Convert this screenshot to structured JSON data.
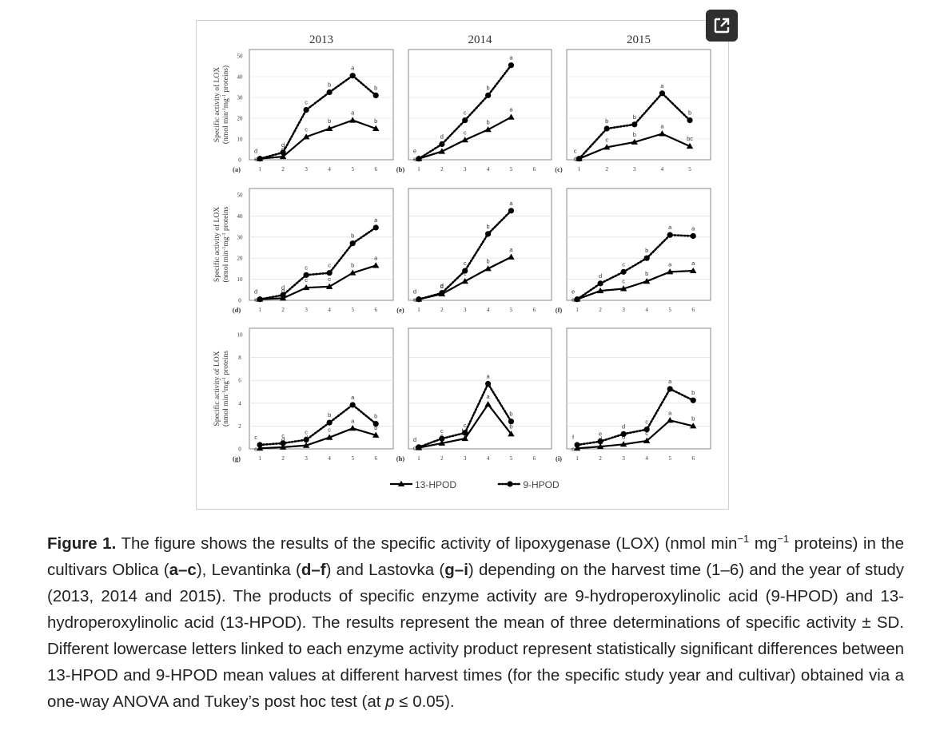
{
  "figure": {
    "years": [
      "2013",
      "2014",
      "2015"
    ],
    "y_axis_labels": [
      [
        "Specific activity of LOX",
        "(nmol min",
        "-1",
        "mg",
        "-1",
        " proteins)"
      ],
      [
        "Specific activity of LOX",
        "(nmol min",
        "-1",
        "mg",
        "-1",
        " proteins"
      ],
      [
        "Specific activity of LOX",
        "(nmol min",
        "-1",
        "mg",
        "-1",
        " proteins"
      ]
    ],
    "legend": {
      "hpod13": "13-HPOD",
      "hpod9": "9-HPOD"
    },
    "colors": {
      "line": "#000000",
      "axis": "#8a8a8a",
      "grid": "#d9d9d9"
    }
  },
  "caption": {
    "label": "Figure 1.",
    "t1": " The figure shows the results of the specific activity of lipoxygenase (LOX) (nmol min",
    "sup1": "−1",
    "t2": " mg",
    "sup2": "−1",
    "t3": " proteins) in the cultivars Oblica (",
    "b1": "a–c",
    "t4": "), Levantinka (",
    "b2": "d–f",
    "t5": ") and Lastovka (",
    "b3": "g–i",
    "t6": ") depending on the harvest time (1–6) and the year of study (2013, 2014 and 2015). The products of specific enzyme activity are 9-hydroperoxylinolic acid (9-HPOD) and 13-hydroperoxylinolic acid (13-HPOD). The results represent the mean of three determinations of specific activity ± SD. Different lowercase letters linked to each enzyme activity product represent statistically significant differences between 13-HPOD and 9-HPOD mean values at different harvest times (for the specific study year and cultivar) obtained via a one-way ANOVA and Tukey’s post hoc test (at ",
    "italic": "p",
    "t7": " ≤ 0.05)."
  },
  "chart_data": [
    {
      "panel": "(a)",
      "type": "line",
      "x": [
        1,
        2,
        3,
        4,
        5,
        6
      ],
      "ylim": [
        0,
        50
      ],
      "yticks": [
        0,
        10,
        20,
        30,
        40,
        50
      ],
      "series": [
        {
          "name": "13-HPOD",
          "values": [
            0.5,
            1.5,
            11,
            15,
            19,
            15
          ],
          "letters": [
            "e",
            "d",
            "c",
            "b",
            "a",
            "b"
          ]
        },
        {
          "name": "9-HPOD",
          "values": [
            0.5,
            3.5,
            24,
            32.5,
            40.5,
            31
          ],
          "letters": [
            "d",
            "d",
            "c",
            "b",
            "a",
            "b"
          ]
        }
      ]
    },
    {
      "panel": "(b)",
      "type": "line",
      "x": [
        1,
        2,
        3,
        4,
        5
      ],
      "xticks": [
        1,
        2,
        3,
        4,
        5,
        6
      ],
      "ylim": [
        0,
        50
      ],
      "series": [
        {
          "name": "13-HPOD",
          "values": [
            0.5,
            4,
            9.5,
            14.5,
            20.5
          ],
          "letters": [
            "e",
            "d",
            "c",
            "b",
            "a"
          ]
        },
        {
          "name": "9-HPOD",
          "values": [
            0.5,
            7.5,
            19,
            31,
            45.5
          ],
          "letters": [
            "e",
            "d",
            "c",
            "b",
            "a"
          ]
        }
      ]
    },
    {
      "panel": "(c)",
      "type": "line",
      "x": [
        1,
        2,
        3,
        4,
        5
      ],
      "ylim": [
        0,
        50
      ],
      "series": [
        {
          "name": "13-HPOD",
          "values": [
            0.5,
            6,
            8.5,
            12.5,
            6.5
          ],
          "letters": [
            "d",
            "c",
            "b",
            "a",
            "bc"
          ]
        },
        {
          "name": "9-HPOD",
          "values": [
            0.5,
            15,
            17,
            32,
            19
          ],
          "letters": [
            "c",
            "b",
            "b",
            "a",
            "b"
          ]
        }
      ]
    },
    {
      "panel": "(d)",
      "type": "line",
      "x": [
        1,
        2,
        3,
        4,
        5,
        6
      ],
      "ylim": [
        0,
        50
      ],
      "yticks": [
        0,
        10,
        20,
        30,
        40,
        50
      ],
      "series": [
        {
          "name": "13-HPOD",
          "values": [
            0.5,
            1,
            6,
            6.5,
            13,
            16.5
          ],
          "letters": [
            "e",
            "d",
            "c",
            "c",
            "b",
            "a"
          ]
        },
        {
          "name": "9-HPOD",
          "values": [
            0.5,
            2.5,
            12,
            13,
            27,
            34.5
          ],
          "letters": [
            "d",
            "d",
            "c",
            "c",
            "b",
            "a"
          ]
        }
      ]
    },
    {
      "panel": "(e)",
      "type": "line",
      "x": [
        1,
        2,
        3,
        4,
        5
      ],
      "xticks": [
        1,
        2,
        3,
        4,
        5,
        6
      ],
      "ylim": [
        0,
        50
      ],
      "series": [
        {
          "name": "13-HPOD",
          "values": [
            0.5,
            3,
            9,
            15,
            20.5
          ],
          "letters": [
            "e",
            "d",
            "c",
            "b",
            "a"
          ]
        },
        {
          "name": "9-HPOD",
          "values": [
            0.5,
            3.5,
            14,
            31.5,
            42.5
          ],
          "letters": [
            "d",
            "d",
            "c",
            "b",
            "a"
          ]
        }
      ]
    },
    {
      "panel": "(f)",
      "type": "line",
      "x": [
        1,
        2,
        3,
        4,
        5,
        6
      ],
      "ylim": [
        0,
        50
      ],
      "series": [
        {
          "name": "13-HPOD",
          "values": [
            0.5,
            4.5,
            5.5,
            9,
            13.5,
            14
          ],
          "letters": [
            "e",
            "d",
            "c",
            "b",
            "a",
            "a"
          ]
        },
        {
          "name": "9-HPOD",
          "values": [
            0.5,
            8,
            13.5,
            20,
            31,
            30.5
          ],
          "letters": [
            "e",
            "d",
            "c",
            "b",
            "a",
            "a"
          ]
        }
      ]
    },
    {
      "panel": "(g)",
      "type": "line",
      "x": [
        1,
        2,
        3,
        4,
        5,
        6
      ],
      "ylim": [
        0,
        10
      ],
      "yticks": [
        0,
        2,
        4,
        6,
        8,
        10
      ],
      "series": [
        {
          "name": "13-HPOD",
          "values": [
            0.05,
            0.15,
            0.3,
            1.0,
            1.8,
            1.2
          ],
          "letters": [
            "e",
            "d",
            "d",
            "c",
            "a",
            "b"
          ]
        },
        {
          "name": "9-HPOD",
          "values": [
            0.35,
            0.5,
            0.8,
            2.3,
            3.85,
            2.2
          ],
          "letters": [
            "c",
            "c",
            "c",
            "b",
            "a",
            "b"
          ]
        }
      ]
    },
    {
      "panel": "(h)",
      "type": "line",
      "x": [
        1,
        2,
        3,
        4,
        5
      ],
      "xticks": [
        1,
        2,
        3,
        4,
        5,
        6
      ],
      "ylim": [
        0,
        10
      ],
      "series": [
        {
          "name": "13-HPOD",
          "values": [
            0.1,
            0.5,
            0.9,
            3.9,
            1.3
          ],
          "letters": [
            "d",
            "c",
            "bc",
            "a",
            "b"
          ]
        },
        {
          "name": "9-HPOD",
          "values": [
            0.15,
            0.9,
            1.4,
            5.7,
            2.4
          ],
          "letters": [
            "d",
            "c",
            "c",
            "a",
            "b"
          ]
        }
      ]
    },
    {
      "panel": "(i)",
      "type": "line",
      "x": [
        1,
        2,
        3,
        4,
        5,
        6
      ],
      "ylim": [
        0,
        10
      ],
      "series": [
        {
          "name": "13-HPOD",
          "values": [
            0.05,
            0.2,
            0.4,
            0.7,
            2.5,
            2.0
          ],
          "letters": [
            "e",
            "d",
            "d",
            "c",
            "a",
            "b"
          ]
        },
        {
          "name": "9-HPOD",
          "values": [
            0.35,
            0.65,
            1.3,
            1.7,
            5.25,
            4.25
          ],
          "letters": [
            "f",
            "e",
            "d",
            "c",
            "a",
            "b"
          ]
        }
      ]
    }
  ]
}
